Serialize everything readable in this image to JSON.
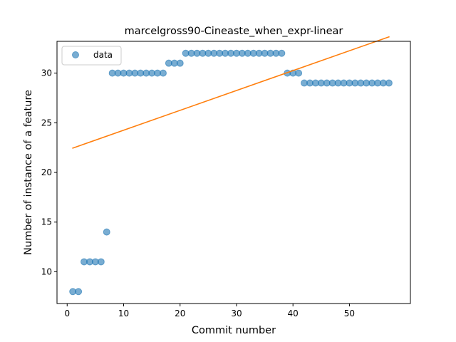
{
  "chart_data": {
    "type": "scatter",
    "title": "marcelgross90-Cineaste_when_expr-linear",
    "xlabel": "Commit number",
    "ylabel": "Number of instance of a feature",
    "xlim": [
      -1.8,
      60.8
    ],
    "ylim": [
      6.8,
      33.2
    ],
    "xticks": [
      0,
      10,
      20,
      30,
      40,
      50
    ],
    "yticks": [
      10,
      15,
      20,
      25,
      30
    ],
    "grid": false,
    "legend": {
      "position": "top-left",
      "entries": [
        "data"
      ]
    },
    "series": [
      {
        "name": "data",
        "kind": "scatter",
        "color": "#1f77b4",
        "x": [
          1,
          2,
          3,
          4,
          5,
          6,
          7,
          8,
          9,
          10,
          11,
          12,
          13,
          14,
          15,
          16,
          17,
          18,
          19,
          20,
          21,
          22,
          23,
          24,
          25,
          26,
          27,
          28,
          29,
          30,
          31,
          32,
          33,
          34,
          35,
          36,
          37,
          38,
          39,
          40,
          41,
          42,
          43,
          44,
          45,
          46,
          47,
          48,
          49,
          50,
          51,
          52,
          53,
          54,
          55,
          56,
          57
        ],
        "y": [
          8,
          8,
          11,
          11,
          11,
          11,
          14,
          30,
          30,
          30,
          30,
          30,
          30,
          30,
          30,
          30,
          30,
          31,
          31,
          31,
          32,
          32,
          32,
          32,
          32,
          32,
          32,
          32,
          32,
          32,
          32,
          32,
          32,
          32,
          32,
          32,
          32,
          32,
          30,
          30,
          30,
          29,
          29,
          29,
          29,
          29,
          29,
          29,
          29,
          29,
          29,
          29,
          29,
          29,
          29,
          29,
          29
        ]
      },
      {
        "kind": "line",
        "color": "#ff7f0e",
        "x": [
          1,
          57
        ],
        "y": [
          22.45,
          33.65
        ]
      }
    ]
  }
}
